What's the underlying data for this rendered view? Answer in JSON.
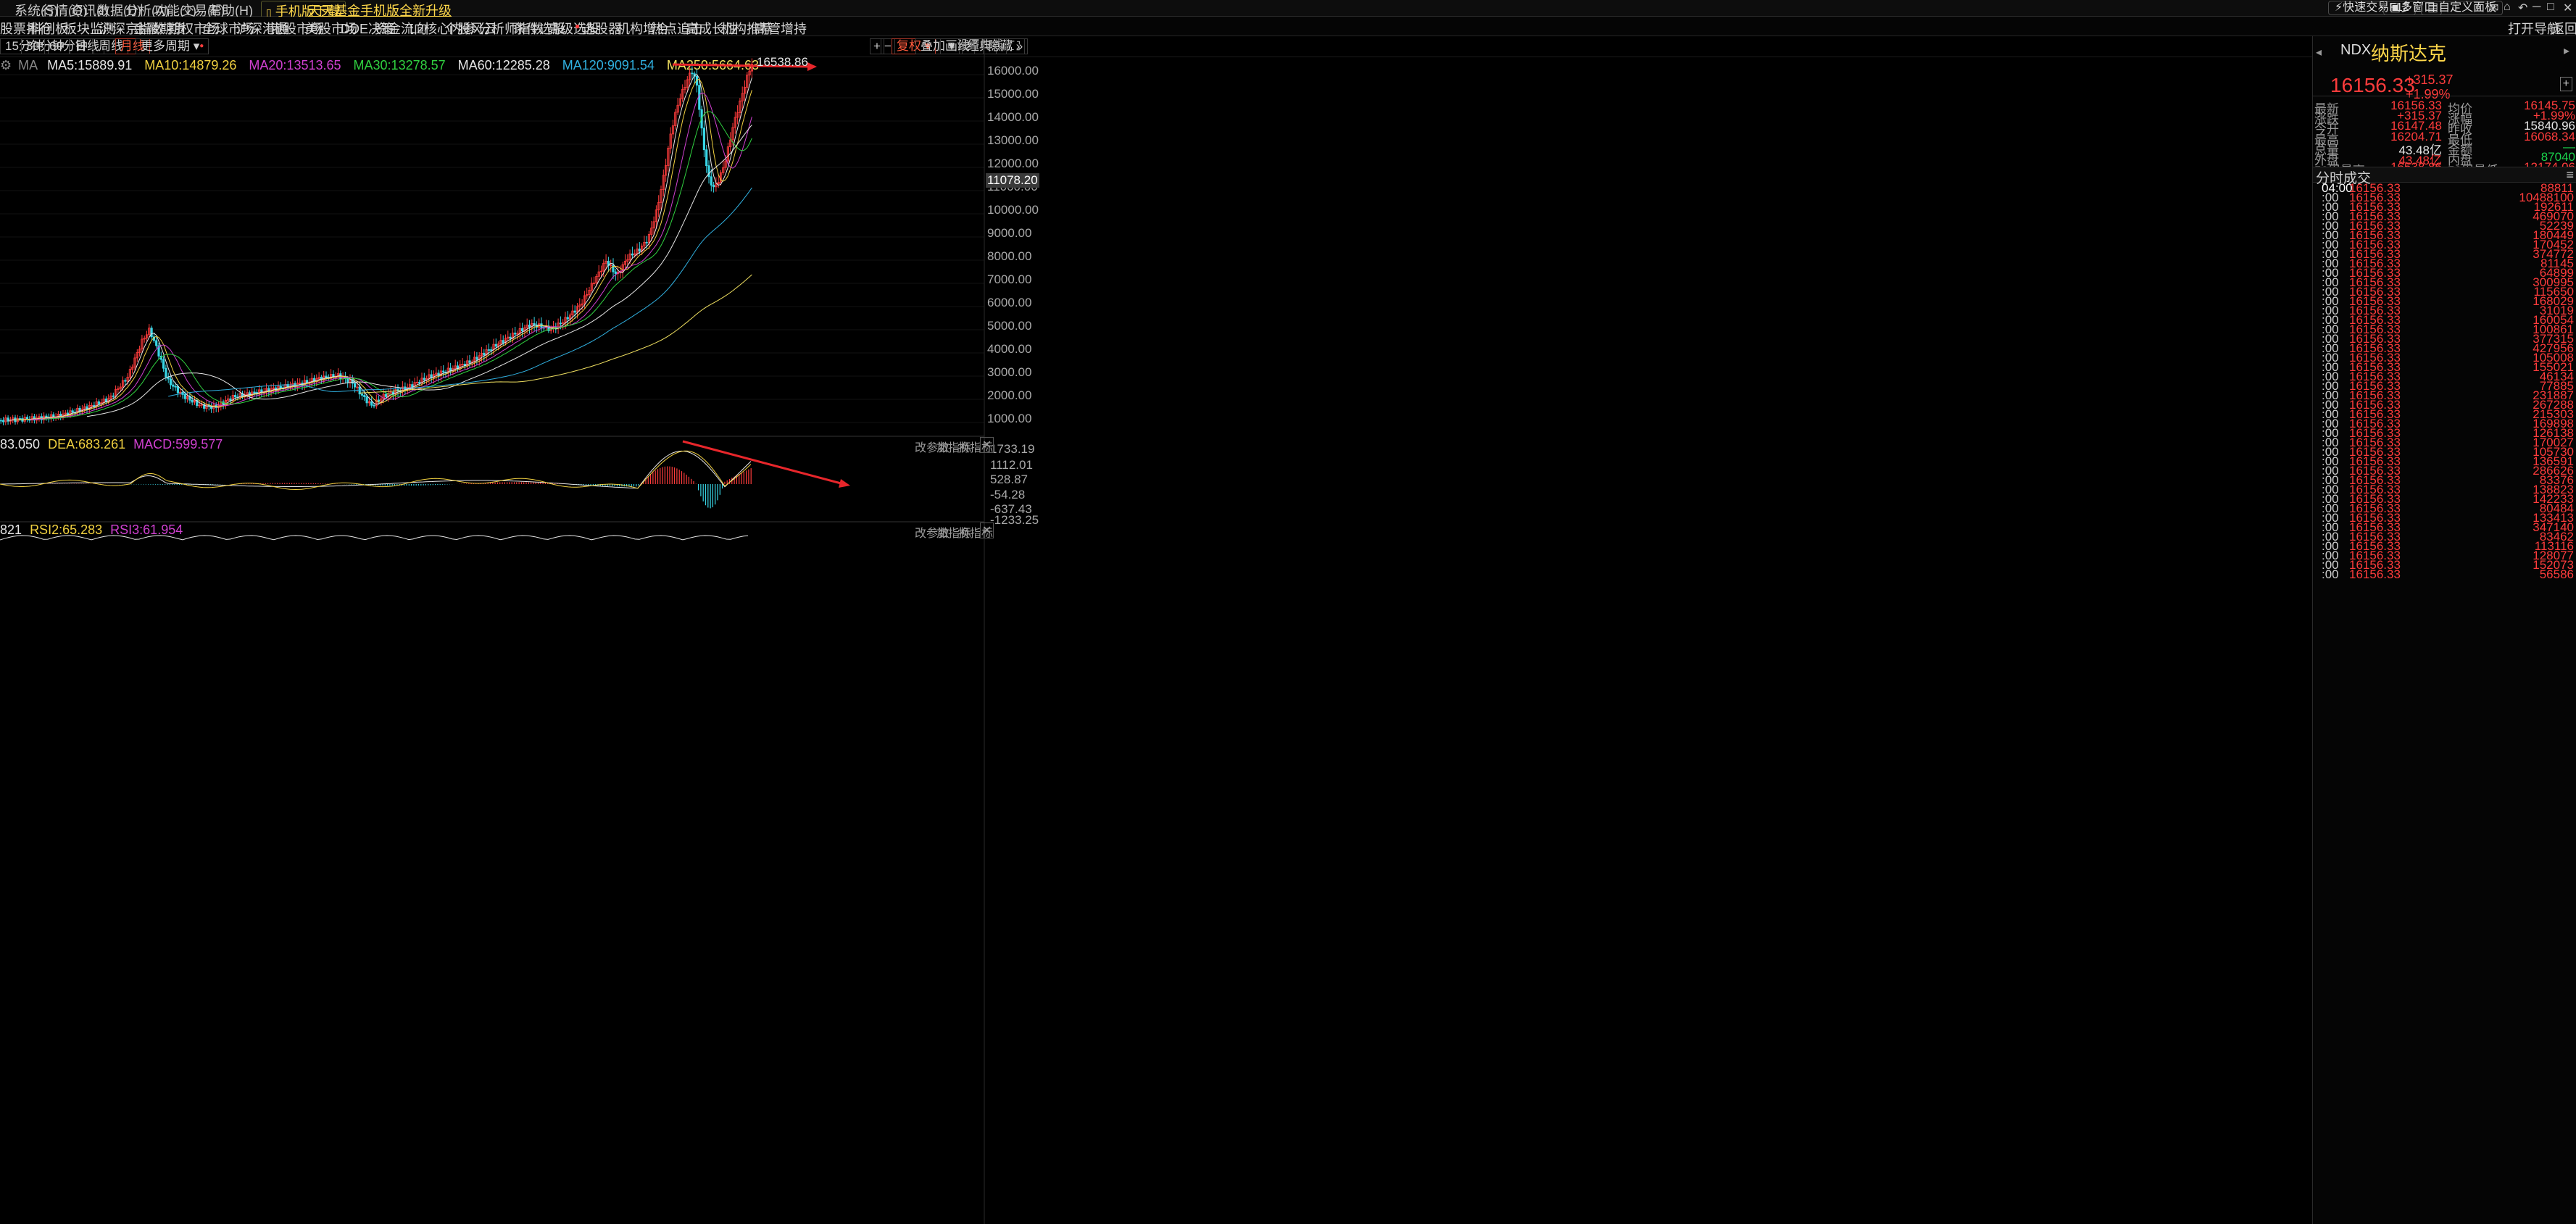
{
  "menubar": {
    "items": [
      "系统(S)",
      "行情(Q)",
      "资讯(I)",
      "数据(D)",
      "分析(A)",
      "功能(T)",
      "交易(E)",
      "帮助(H)"
    ],
    "download": "手机版下载",
    "promo": "天天基金手机版全新升级",
    "right_buttons": [
      "快速交易F12",
      "多窗口",
      "自定义面板"
    ]
  },
  "navbar": {
    "items": [
      "股票排行",
      "科创板",
      "板块监测",
      "沪深京指数",
      "金融期货",
      "期权市场",
      "全球市场",
      "沪深港通",
      "港股市场",
      "美股市场",
      "DDE决策",
      "资金流向",
      "L2核心内参",
      "个股风云",
      "分析师指数",
      "条件选股",
      "高级选股",
      "选股器",
      "机构增合",
      "热点追击",
      "高成长性",
      "机构推荐",
      "高管增持"
    ],
    "right": [
      "打开导航",
      "返回"
    ]
  },
  "toolbar": {
    "periods": [
      "15分钟",
      "30分钟",
      "60分钟",
      "日线",
      "周线",
      "月线",
      "更多周期"
    ],
    "selected_period": "月线",
    "right": [
      "+",
      "−",
      "复权",
      "叠加",
      "画线",
      "经典",
      "隐藏"
    ],
    "set_ma": "设置均线"
  },
  "ma_legend": {
    "label": "MA",
    "items": [
      {
        "text": "MA5:15889.91",
        "color": "#e6e6e6"
      },
      {
        "text": "MA10:14879.26",
        "color": "#f0d040"
      },
      {
        "text": "MA20:13513.65",
        "color": "#d040d0"
      },
      {
        "text": "MA30:13278.57",
        "color": "#30d040"
      },
      {
        "text": "MA60:12285.28",
        "color": "#e6e6e6"
      },
      {
        "text": "MA120:9091.54",
        "color": "#30b0e0"
      },
      {
        "text": "MA250:5664.63",
        "color": "#f0e060"
      }
    ]
  },
  "main_chart": {
    "y_ticks": [
      "16000.00",
      "15000.00",
      "14000.00",
      "13000.00",
      "12000.00",
      "11000.00",
      "10000.00",
      "9000.00",
      "8000.00",
      "7000.00",
      "6000.00",
      "5000.00",
      "4000.00",
      "3000.00",
      "2000.00",
      "1000.00"
    ],
    "cursor_value": "11078.20",
    "high_label": "16538.86"
  },
  "macd": {
    "legend": [
      "83.050",
      "DEA:683.261",
      "MACD:599.577"
    ],
    "legend_colors": [
      "#e6e6e6",
      "#f0d040",
      "#d040d0"
    ],
    "y_ticks": [
      "1733.19",
      "1112.01",
      "528.87",
      "-54.28",
      "-637.43",
      "-1233.25"
    ],
    "controls": [
      "改参数",
      "加指标",
      "换指标"
    ]
  },
  "rsi": {
    "legend": [
      "821",
      "RSI2:65.283",
      "RSI3:61.954"
    ],
    "legend_colors": [
      "#e6e6e6",
      "#f0d040",
      "#d040d0"
    ],
    "controls": [
      "改参数",
      "加指标",
      "换指标"
    ]
  },
  "quote": {
    "code": "NDX",
    "name": "纳斯达克",
    "price": "16156.33",
    "change": "+315.37",
    "change_pct": "+1.99%",
    "rows": [
      {
        "l1": "最新",
        "v1": "16156.33",
        "c1": "red",
        "l2": "均价",
        "v2": "16145.75",
        "c2": "red"
      },
      {
        "l1": "涨跌",
        "v1": "+315.37",
        "c1": "red",
        "l2": "涨幅",
        "v2": "+1.99%",
        "c2": "red"
      },
      {
        "l1": "今开",
        "v1": "16147.48",
        "c1": "red",
        "l2": "昨收",
        "v2": "15840.96",
        "c2": "white"
      },
      {
        "l1": "最高",
        "v1": "16204.71",
        "c1": "red",
        "l2": "最低",
        "v2": "16068.34",
        "c2": "red"
      },
      {
        "l1": "总量",
        "v1": "43.48亿",
        "c1": "white",
        "l2": "金额",
        "v2": "—",
        "c2": "green"
      },
      {
        "l1": "外盘",
        "v1": "43.48亿",
        "c1": "red",
        "l2": "内盘",
        "v2": "87040",
        "c2": "green"
      },
      {
        "l1": "52周最高",
        "v1": "16538.86",
        "c1": "red",
        "l2": "52周最低",
        "v2": "12174.06",
        "c2": "red"
      }
    ],
    "ticks_title": "分时成交",
    "ticks": [
      {
        "t": "04:00",
        "p": "16156.33",
        "v": "88811"
      },
      {
        "t": ":00",
        "p": "16156.33",
        "v": "10488100"
      },
      {
        "t": ":00",
        "p": "16156.33",
        "v": "192611"
      },
      {
        "t": ":00",
        "p": "16156.33",
        "v": "469070"
      },
      {
        "t": ":00",
        "p": "16156.33",
        "v": "52239"
      },
      {
        "t": ":00",
        "p": "16156.33",
        "v": "180449"
      },
      {
        "t": ":00",
        "p": "16156.33",
        "v": "170452"
      },
      {
        "t": ":00",
        "p": "16156.33",
        "v": "374772"
      },
      {
        "t": ":00",
        "p": "16156.33",
        "v": "81145"
      },
      {
        "t": ":00",
        "p": "16156.33",
        "v": "64899"
      },
      {
        "t": ":00",
        "p": "16156.33",
        "v": "300995"
      },
      {
        "t": ":00",
        "p": "16156.33",
        "v": "115650"
      },
      {
        "t": ":00",
        "p": "16156.33",
        "v": "168029"
      },
      {
        "t": ":00",
        "p": "16156.33",
        "v": "31019"
      },
      {
        "t": ":00",
        "p": "16156.33",
        "v": "160054"
      },
      {
        "t": ":00",
        "p": "16156.33",
        "v": "100861"
      },
      {
        "t": ":00",
        "p": "16156.33",
        "v": "377315"
      },
      {
        "t": ":00",
        "p": "16156.33",
        "v": "427956"
      },
      {
        "t": ":00",
        "p": "16156.33",
        "v": "105008"
      },
      {
        "t": ":00",
        "p": "16156.33",
        "v": "155021"
      },
      {
        "t": ":00",
        "p": "16156.33",
        "v": "46134"
      },
      {
        "t": ":00",
        "p": "16156.33",
        "v": "77885"
      },
      {
        "t": ":00",
        "p": "16156.33",
        "v": "231887"
      },
      {
        "t": ":00",
        "p": "16156.33",
        "v": "267288"
      },
      {
        "t": ":00",
        "p": "16156.33",
        "v": "215303"
      },
      {
        "t": ":00",
        "p": "16156.33",
        "v": "169898"
      },
      {
        "t": ":00",
        "p": "16156.33",
        "v": "126138"
      },
      {
        "t": ":00",
        "p": "16156.33",
        "v": "170027"
      },
      {
        "t": ":00",
        "p": "16156.33",
        "v": "105730"
      },
      {
        "t": ":00",
        "p": "16156.33",
        "v": "136591"
      },
      {
        "t": ":00",
        "p": "16156.33",
        "v": "286626"
      },
      {
        "t": ":00",
        "p": "16156.33",
        "v": "83376"
      },
      {
        "t": ":00",
        "p": "16156.33",
        "v": "138823"
      },
      {
        "t": ":00",
        "p": "16156.33",
        "v": "142233"
      },
      {
        "t": ":00",
        "p": "16156.33",
        "v": "80484"
      },
      {
        "t": ":00",
        "p": "16156.33",
        "v": "133413"
      },
      {
        "t": ":00",
        "p": "16156.33",
        "v": "347140"
      },
      {
        "t": ":00",
        "p": "16156.33",
        "v": "83462"
      },
      {
        "t": ":00",
        "p": "16156.33",
        "v": "113116"
      },
      {
        "t": ":00",
        "p": "16156.33",
        "v": "128077"
      },
      {
        "t": ":00",
        "p": "16156.33",
        "v": "152073"
      },
      {
        "t": ":00",
        "p": "16156.33",
        "v": "56586"
      }
    ]
  },
  "colors": {
    "up": "#ff3c3c",
    "down": "#38d6e6",
    "annotation_arrow": "#e8262b"
  }
}
